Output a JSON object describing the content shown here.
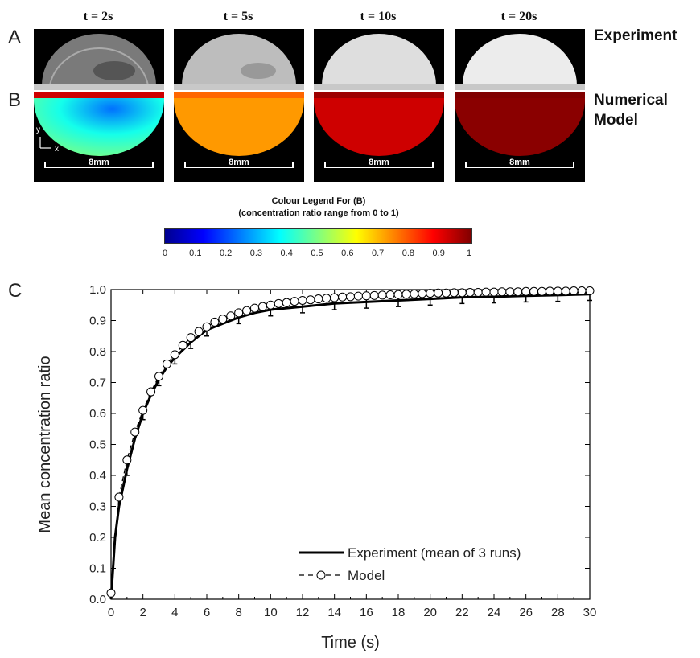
{
  "panels": {
    "a_letter": "A",
    "b_letter": "B",
    "c_letter": "C",
    "row_a_label": "Experiment",
    "row_b_label_1": "Numerical",
    "row_b_label_2": "Model"
  },
  "timepoints": [
    {
      "label": "t = 2s",
      "model_value": 0.35,
      "scale": "8mm"
    },
    {
      "label": "t = 5s",
      "model_value": 0.72,
      "scale": "8mm"
    },
    {
      "label": "t = 10s",
      "model_value": 0.92,
      "scale": "8mm"
    },
    {
      "label": "t = 20s",
      "model_value": 0.99,
      "scale": "8mm"
    }
  ],
  "axes_glyph": {
    "y": "y",
    "x": "x"
  },
  "legend": {
    "title_line1": "Colour Legend For (B)",
    "title_line2": "(concentration ratio range from 0 to 1)",
    "ticks": [
      "0",
      "0.1",
      "0.2",
      "0.3",
      "0.4",
      "0.5",
      "0.6",
      "0.7",
      "0.8",
      "0.9",
      "1"
    ],
    "colors": [
      "#00008f",
      "#0000ff",
      "#0080ff",
      "#00ffff",
      "#80ff80",
      "#ffff00",
      "#ff8000",
      "#ff0000",
      "#800000"
    ]
  },
  "chart_data": {
    "type": "line",
    "title": "",
    "xlabel": "Time (s)",
    "ylabel": "Mean concentration ratio",
    "xlim": [
      0,
      30
    ],
    "ylim": [
      0,
      1.0
    ],
    "xticks": [
      "0",
      "2",
      "4",
      "6",
      "8",
      "10",
      "12",
      "14",
      "16",
      "18",
      "20",
      "22",
      "24",
      "26",
      "28",
      "30"
    ],
    "yticks": [
      "0.0",
      "0.1",
      "0.2",
      "0.3",
      "0.4",
      "0.5",
      "0.6",
      "0.7",
      "0.8",
      "0.9",
      "1.0"
    ],
    "legend_position": "bottom-right",
    "series": [
      {
        "name": "Experiment (mean of 3 runs)",
        "style": "solid",
        "x": [
          0,
          0.25,
          0.5,
          1,
          1.5,
          2,
          2.5,
          3,
          3.5,
          4,
          5,
          6,
          7,
          8,
          9,
          10,
          12,
          14,
          16,
          18,
          20,
          22,
          24,
          26,
          28,
          30
        ],
        "y": [
          0.0,
          0.2,
          0.3,
          0.42,
          0.52,
          0.6,
          0.66,
          0.71,
          0.75,
          0.78,
          0.83,
          0.87,
          0.89,
          0.91,
          0.925,
          0.935,
          0.945,
          0.955,
          0.96,
          0.965,
          0.97,
          0.975,
          0.977,
          0.98,
          0.982,
          0.985
        ],
        "errorbars_at": [
          1,
          2,
          3,
          4,
          5,
          6,
          8,
          10,
          12,
          14,
          16,
          18,
          20,
          22,
          24,
          26,
          28,
          30
        ],
        "error": 0.02
      },
      {
        "name": "Model",
        "style": "dashed-circle",
        "x": [
          0,
          0.5,
          1,
          1.5,
          2,
          2.5,
          3,
          3.5,
          4,
          4.5,
          5,
          5.5,
          6,
          6.5,
          7,
          7.5,
          8,
          8.5,
          9,
          9.5,
          10,
          10.5,
          11,
          11.5,
          12,
          12.5,
          13,
          13.5,
          14,
          14.5,
          15,
          15.5,
          16,
          16.5,
          17,
          17.5,
          18,
          18.5,
          19,
          19.5,
          20,
          20.5,
          21,
          21.5,
          22,
          22.5,
          23,
          23.5,
          24,
          24.5,
          25,
          25.5,
          26,
          26.5,
          27,
          27.5,
          28,
          28.5,
          29,
          29.5,
          30
        ],
        "y": [
          0.02,
          0.33,
          0.45,
          0.54,
          0.61,
          0.67,
          0.72,
          0.76,
          0.79,
          0.82,
          0.845,
          0.865,
          0.88,
          0.895,
          0.905,
          0.915,
          0.925,
          0.932,
          0.94,
          0.945,
          0.95,
          0.955,
          0.958,
          0.962,
          0.965,
          0.967,
          0.97,
          0.972,
          0.974,
          0.976,
          0.977,
          0.979,
          0.98,
          0.981,
          0.982,
          0.983,
          0.984,
          0.985,
          0.986,
          0.987,
          0.988,
          0.989,
          0.989,
          0.99,
          0.99,
          0.991,
          0.991,
          0.992,
          0.992,
          0.993,
          0.993,
          0.993,
          0.994,
          0.994,
          0.994,
          0.995,
          0.995,
          0.995,
          0.996,
          0.996,
          0.996
        ]
      }
    ]
  }
}
